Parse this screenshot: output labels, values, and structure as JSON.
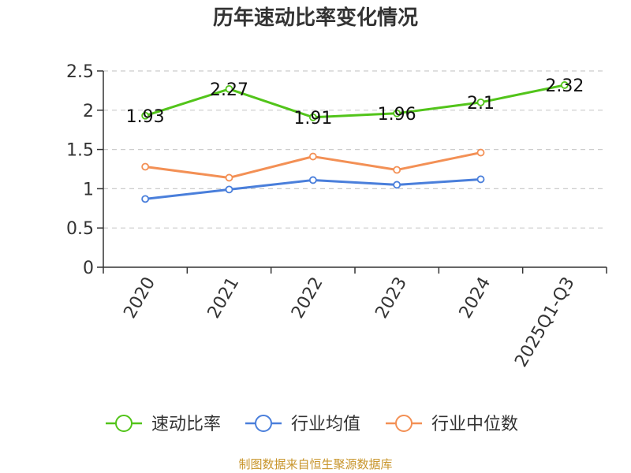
{
  "chart_data": {
    "type": "line",
    "title": "历年速动比率变化情况",
    "categories": [
      "2020",
      "2021",
      "2022",
      "2023",
      "2024",
      "2025Q1-Q3"
    ],
    "ylim": [
      0,
      2.5
    ],
    "yticks": [
      "0",
      "0.5",
      "1",
      "1.5",
      "2",
      "2.5"
    ],
    "grid": true,
    "legend_position": "bottom",
    "series": [
      {
        "name": "速动比率",
        "color": "#52c41a",
        "values": [
          1.93,
          2.27,
          1.91,
          1.96,
          2.1,
          2.32
        ],
        "labels": [
          "1.93",
          "2.27",
          "1.91",
          "1.96",
          "2.1",
          "2.32"
        ],
        "show_labels": true
      },
      {
        "name": "行业均值",
        "color": "#4a7fdb",
        "values": [
          0.87,
          0.99,
          1.11,
          1.05,
          1.12,
          null
        ],
        "show_labels": false
      },
      {
        "name": "行业中位数",
        "color": "#f39055",
        "values": [
          1.28,
          1.14,
          1.41,
          1.24,
          1.46,
          null
        ],
        "show_labels": false
      }
    ]
  },
  "source_note": "制图数据来自恒生聚源数据库"
}
